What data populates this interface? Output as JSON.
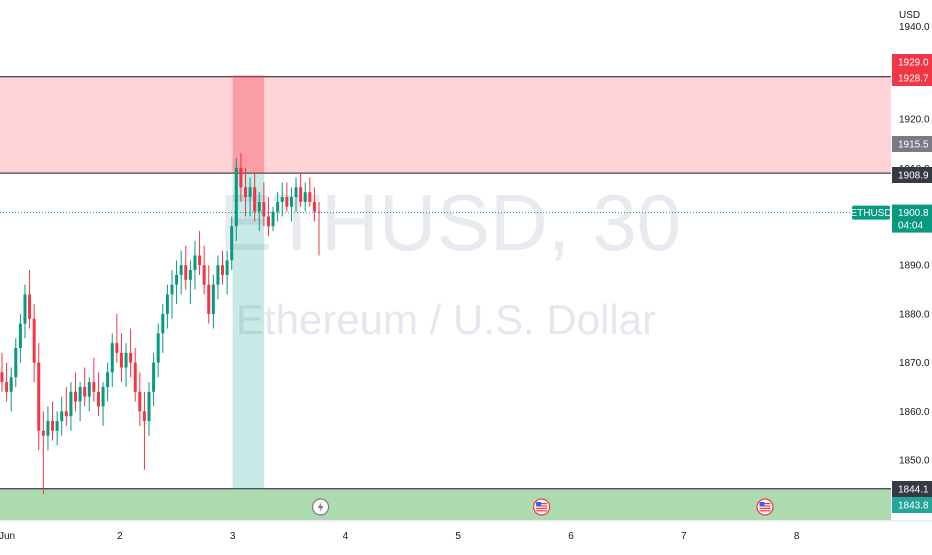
{
  "chart_data": {
    "type": "candlestick",
    "symbol": "ETHUSD",
    "interval": "30",
    "description": "Ethereum / U.S. Dollar",
    "currency": "USD",
    "y_ticks": [
      1850.0,
      1860.0,
      1870.0,
      1880.0,
      1890.0,
      1920.0
    ],
    "y_partial_top_label": "1940.0",
    "y_partial_under_tag_label": "1910.0",
    "x_ticks": [
      {
        "label": "Jun",
        "day": 1
      },
      {
        "label": "2",
        "day": 2
      },
      {
        "label": "3",
        "day": 3
      },
      {
        "label": "4",
        "day": 4
      },
      {
        "label": "5",
        "day": 5
      },
      {
        "label": "6",
        "day": 6
      },
      {
        "label": "7",
        "day": 7
      },
      {
        "label": "8",
        "day": 8
      }
    ],
    "price_tags": [
      {
        "value": "1929.0",
        "color": "#f23645"
      },
      {
        "value": "1928.7",
        "color": "#f23645"
      },
      {
        "value": "1915.5",
        "color": "#787b86"
      },
      {
        "value": "1908.9",
        "color": "#363a45"
      },
      {
        "value": "1844.1",
        "color": "#363a45"
      },
      {
        "value": "1843.8",
        "color": "#26a69a"
      }
    ],
    "last_price": {
      "symbol": "ETHUSD",
      "value": "1900.8",
      "countdown": "04:04",
      "color": "#089981"
    },
    "supply_zone": {
      "from": 1908.9,
      "to": 1928.7,
      "color": "#ffcdd2"
    },
    "demand_zone": {
      "from": 1843.8,
      "to": 1844.1,
      "color": "#a5d6a7"
    },
    "short_position": {
      "entry": 1908.9,
      "stop": 1929.0,
      "target": 1844.1,
      "start_day": 3.0,
      "end_day": 3.28
    },
    "event_icons": [
      {
        "name": "lightning-icon",
        "day": 3.78
      },
      {
        "name": "us-flag-icon",
        "day": 5.74
      },
      {
        "name": "us-flag-icon",
        "day": 7.72
      }
    ],
    "candles": [
      [
        1868,
        1872,
        1864,
        1866
      ],
      [
        1866,
        1870,
        1862,
        1864
      ],
      [
        1864,
        1869,
        1860,
        1867
      ],
      [
        1867,
        1875,
        1865,
        1873
      ],
      [
        1873,
        1880,
        1870,
        1878
      ],
      [
        1878,
        1886,
        1875,
        1884
      ],
      [
        1884,
        1889,
        1877,
        1879
      ],
      [
        1879,
        1882,
        1866,
        1870
      ],
      [
        1870,
        1874,
        1852,
        1856
      ],
      [
        1856,
        1860,
        1843,
        1855
      ],
      [
        1855,
        1861,
        1852,
        1858
      ],
      [
        1858,
        1862,
        1854,
        1856
      ],
      [
        1856,
        1860,
        1853,
        1858
      ],
      [
        1858,
        1863,
        1855,
        1860
      ],
      [
        1860,
        1865,
        1857,
        1859
      ],
      [
        1859,
        1866,
        1856,
        1864
      ],
      [
        1864,
        1868,
        1860,
        1862
      ],
      [
        1862,
        1866,
        1858,
        1865
      ],
      [
        1865,
        1869,
        1861,
        1863
      ],
      [
        1863,
        1867,
        1860,
        1866
      ],
      [
        1866,
        1871,
        1862,
        1864
      ],
      [
        1864,
        1868,
        1859,
        1861
      ],
      [
        1861,
        1866,
        1857,
        1865
      ],
      [
        1865,
        1870,
        1862,
        1868
      ],
      [
        1868,
        1876,
        1865,
        1874
      ],
      [
        1874,
        1880,
        1870,
        1872
      ],
      [
        1872,
        1876,
        1866,
        1869
      ],
      [
        1869,
        1874,
        1865,
        1872
      ],
      [
        1872,
        1877,
        1867,
        1870
      ],
      [
        1870,
        1873,
        1862,
        1864
      ],
      [
        1864,
        1868,
        1857,
        1860
      ],
      [
        1860,
        1864,
        1848,
        1858
      ],
      [
        1858,
        1866,
        1855,
        1864
      ],
      [
        1864,
        1872,
        1861,
        1870
      ],
      [
        1870,
        1878,
        1867,
        1876
      ],
      [
        1876,
        1882,
        1872,
        1880
      ],
      [
        1880,
        1886,
        1877,
        1884
      ],
      [
        1884,
        1889,
        1879,
        1886
      ],
      [
        1886,
        1891,
        1882,
        1888
      ],
      [
        1888,
        1893,
        1884,
        1890
      ],
      [
        1890,
        1894,
        1885,
        1887
      ],
      [
        1887,
        1891,
        1882,
        1889
      ],
      [
        1889,
        1895,
        1885,
        1892
      ],
      [
        1892,
        1897,
        1888,
        1890
      ],
      [
        1890,
        1894,
        1884,
        1886
      ],
      [
        1886,
        1890,
        1878,
        1880
      ],
      [
        1880,
        1888,
        1877,
        1886
      ],
      [
        1886,
        1892,
        1883,
        1890
      ],
      [
        1890,
        1893,
        1886,
        1888
      ],
      [
        1888,
        1893,
        1884,
        1891
      ],
      [
        1891,
        1900,
        1889,
        1898
      ],
      [
        1898,
        1912,
        1895,
        1910
      ],
      [
        1910,
        1913,
        1903,
        1906
      ],
      [
        1906,
        1910,
        1900,
        1904
      ],
      [
        1904,
        1908,
        1900,
        1906
      ],
      [
        1906,
        1909,
        1899,
        1901
      ],
      [
        1901,
        1905,
        1897,
        1903
      ],
      [
        1903,
        1907,
        1898,
        1900
      ],
      [
        1900,
        1904,
        1896,
        1898
      ],
      [
        1898,
        1902,
        1897,
        1901
      ],
      [
        1901,
        1905,
        1899,
        1903
      ],
      [
        1903,
        1907,
        1900,
        1904
      ],
      [
        1904,
        1907,
        1901,
        1902
      ],
      [
        1902,
        1906,
        1899,
        1904
      ],
      [
        1904,
        1908,
        1901,
        1906
      ],
      [
        1906,
        1909,
        1902,
        1903
      ],
      [
        1903,
        1907,
        1901,
        1905
      ],
      [
        1905,
        1908,
        1902,
        1903
      ],
      [
        1903,
        1906,
        1899,
        1901
      ],
      [
        1901,
        1903,
        1892,
        1900.8
      ]
    ]
  }
}
